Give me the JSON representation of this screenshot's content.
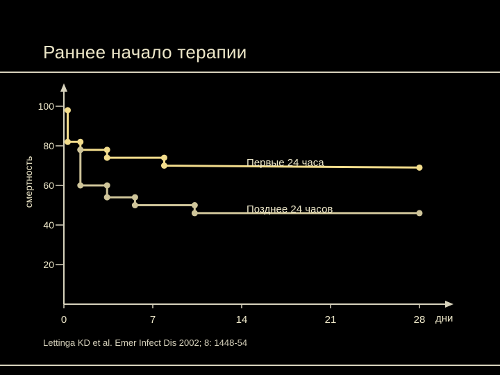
{
  "slide": {
    "title": "Раннее начало терапии",
    "citation": "Lettinga KD et al. Emer Infect Dis 2002; 8: 1448-54"
  },
  "colors": {
    "background": "#000000",
    "axis": "#d8d3bd",
    "text": "#ece6c8",
    "series_early": "#f2dc8c",
    "series_late": "#cfc59a"
  },
  "chart_data": {
    "type": "line",
    "step": true,
    "ylabel": "смертность",
    "xunit": "дни",
    "xticks": [
      0,
      7,
      14,
      21,
      28
    ],
    "yticks": [
      20,
      40,
      60,
      80,
      100
    ],
    "xlim": [
      0,
      28
    ],
    "ylim": [
      0,
      110
    ],
    "grid": false,
    "series": [
      {
        "name": "Первые 24 часа",
        "points": [
          [
            0.3,
            98
          ],
          [
            0.3,
            82
          ],
          [
            1.3,
            82
          ],
          [
            1.3,
            78
          ],
          [
            3.4,
            78
          ],
          [
            3.4,
            74
          ],
          [
            7.9,
            74
          ],
          [
            7.9,
            70
          ],
          [
            28,
            69
          ]
        ]
      },
      {
        "name": "Позднее 24 часов",
        "points": [
          [
            1.3,
            78
          ],
          [
            1.3,
            60
          ],
          [
            3.4,
            60
          ],
          [
            3.4,
            54
          ],
          [
            5.6,
            54
          ],
          [
            5.6,
            50
          ],
          [
            10.3,
            50
          ],
          [
            10.3,
            46
          ],
          [
            28,
            46
          ]
        ]
      }
    ]
  }
}
